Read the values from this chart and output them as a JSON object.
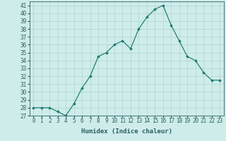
{
  "x": [
    0,
    1,
    2,
    3,
    4,
    5,
    6,
    7,
    8,
    9,
    10,
    11,
    12,
    13,
    14,
    15,
    16,
    17,
    18,
    19,
    20,
    21,
    22,
    23
  ],
  "y": [
    28,
    28,
    28,
    27.5,
    27,
    28.5,
    30.5,
    32,
    34.5,
    35,
    36,
    36.5,
    35.5,
    38,
    39.5,
    40.5,
    41,
    38.5,
    36.5,
    34.5,
    34,
    32.5,
    31.5,
    31.5
  ],
  "ylim": [
    27,
    41.5
  ],
  "yticks": [
    27,
    28,
    29,
    30,
    31,
    32,
    33,
    34,
    35,
    36,
    37,
    38,
    39,
    40,
    41
  ],
  "xticks": [
    0,
    1,
    2,
    3,
    4,
    5,
    6,
    7,
    8,
    9,
    10,
    11,
    12,
    13,
    14,
    15,
    16,
    17,
    18,
    19,
    20,
    21,
    22,
    23
  ],
  "xlabel": "Humidex (Indice chaleur)",
  "line_color": "#1a7a6e",
  "marker": "D",
  "marker_size": 1.8,
  "bg_color": "#ceecea",
  "grid_color": "#b0d4d0",
  "axis_color": "#2a6060",
  "tick_fontsize": 5.5,
  "xlabel_fontsize": 6.5,
  "linewidth": 0.85
}
